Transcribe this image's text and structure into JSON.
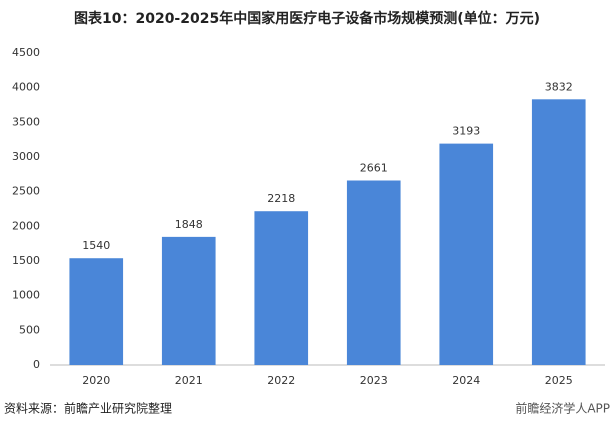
{
  "chart_data": {
    "type": "bar",
    "title": "图表10：2020-2025年中国家用医疗电子设备市场规模预测(单位：万元)",
    "categories": [
      "2020",
      "2021",
      "2022",
      "2023",
      "2024",
      "2025"
    ],
    "values": [
      1540,
      1848,
      2218,
      2661,
      3193,
      3832
    ],
    "color": "#4a86d8",
    "ylim": [
      0,
      4500
    ],
    "yticks": [
      0,
      500,
      1000,
      1500,
      2000,
      2500,
      3000,
      3500,
      4000,
      4500
    ],
    "grid": false,
    "source": "资料来源：前瞻产业研究院整理",
    "watermark": "前瞻经济学人APP"
  }
}
